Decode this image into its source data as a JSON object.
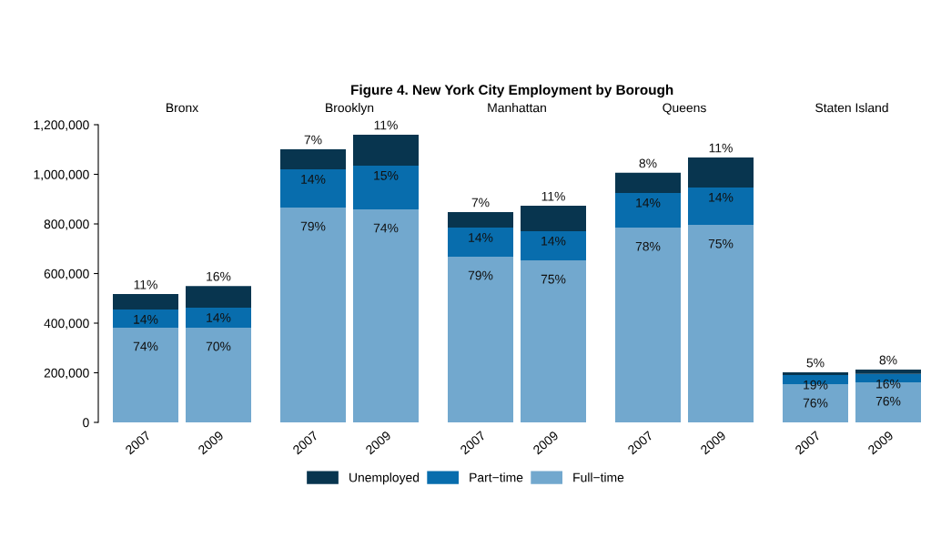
{
  "chart_data": [
    {
      "type": "bar",
      "title": "Bronx",
      "categories": [
        "2007",
        "2009"
      ],
      "stacked": true,
      "legend": "bottom",
      "ylim": [
        0,
        1200000
      ],
      "yticks": [
        {
          "value": 0,
          "label": "0"
        },
        {
          "value": 200000,
          "label": "200,000"
        },
        {
          "value": 400000,
          "label": "400,000"
        },
        {
          "value": 600000,
          "label": "600,000"
        },
        {
          "value": 800000,
          "label": "800,000"
        },
        {
          "value": 1000000,
          "label": "1,000,000"
        },
        {
          "value": 1200000,
          "label": "1,200,000"
        }
      ],
      "series": [
        {
          "name": "Full−time",
          "color": "#72a8ce",
          "values": [
            382000,
            382000
          ]
        },
        {
          "name": "Part−time",
          "color": "#086dad",
          "values": [
            73000,
            80000
          ]
        },
        {
          "name": "Unemployed",
          "color": "#08354f",
          "values": [
            62000,
            88000
          ]
        }
      ],
      "annotations": [
        "Figure 4. New York City Employment by Borough",
        {
          "text": "74%",
          "x": "2007",
          "y": 382000
        },
        {
          "text": "70%",
          "x": "2009",
          "y": 382000
        },
        {
          "text": "14%",
          "x": "2007",
          "y": 455000
        },
        {
          "text": "14%",
          "x": "2009",
          "y": 462000
        },
        {
          "text": "11%",
          "x": "2007",
          "y": 517000
        },
        {
          "text": "16%",
          "x": "2009",
          "y": 550000
        }
      ]
    },
    {
      "type": "bar",
      "title": "Brooklyn",
      "categories": [
        "2007",
        "2009"
      ],
      "stacked": true,
      "tick_labels": "x",
      "ylim": [
        0,
        1200000
      ],
      "series": [
        {
          "color": "#72a8ce",
          "values": [
            866000,
            859000
          ]
        },
        {
          "color": "#086dad",
          "values": [
            154000,
            176000
          ]
        },
        {
          "color": "#08354f",
          "values": [
            81000,
            125000
          ]
        }
      ],
      "annotations": [
        {
          "text": "79%",
          "x": "2007",
          "y": 866000
        },
        {
          "text": "74%",
          "x": "2009",
          "y": 859000
        },
        {
          "text": "14%",
          "x": "2007",
          "y": 1020000
        },
        {
          "text": "15%",
          "x": "2009",
          "y": 1035000
        },
        {
          "text": "7%",
          "x": "2007",
          "y": 1101000
        },
        {
          "text": "11%",
          "x": "2009",
          "y": 1160000
        }
      ]
    },
    {
      "type": "bar",
      "title": "Manhattan",
      "categories": [
        "2007",
        "2009"
      ],
      "stacked": true,
      "tick_labels": "x",
      "ylim": [
        0,
        1200000
      ],
      "series": [
        {
          "color": "#72a8ce",
          "values": [
            668000,
            653000
          ]
        },
        {
          "color": "#086dad",
          "values": [
            117000,
            118000
          ]
        },
        {
          "color": "#08354f",
          "values": [
            63000,
            102000
          ]
        }
      ],
      "annotations": [
        {
          "text": "79%",
          "x": "2007",
          "y": 668000
        },
        {
          "text": "75%",
          "x": "2009",
          "y": 653000
        },
        {
          "text": "14%",
          "x": "2007",
          "y": 785000
        },
        {
          "text": "14%",
          "x": "2009",
          "y": 771000
        },
        {
          "text": "7%",
          "x": "2007",
          "y": 848000
        },
        {
          "text": "11%",
          "x": "2009",
          "y": 873000
        }
      ]
    },
    {
      "type": "bar",
      "title": "Queens",
      "categories": [
        "2007",
        "2009"
      ],
      "stacked": true,
      "tick_labels": "x",
      "ylim": [
        0,
        1200000
      ],
      "series": [
        {
          "color": "#72a8ce",
          "values": [
            785000,
            796000
          ]
        },
        {
          "color": "#086dad",
          "values": [
            140000,
            151000
          ]
        },
        {
          "color": "#08354f",
          "values": [
            81000,
            121000
          ]
        }
      ],
      "annotations": [
        {
          "text": "78%",
          "x": "2007",
          "y": 785000
        },
        {
          "text": "75%",
          "x": "2009",
          "y": 796000
        },
        {
          "text": "14%",
          "x": "2007",
          "y": 925000
        },
        {
          "text": "14%",
          "x": "2009",
          "y": 947000
        },
        {
          "text": "8%",
          "x": "2007",
          "y": 1006000
        },
        {
          "text": "11%",
          "x": "2009",
          "y": 1068000
        }
      ]
    },
    {
      "type": "bar",
      "title": "Staten Island",
      "categories": [
        "2007",
        "2009"
      ],
      "stacked": true,
      "tick_labels": "x",
      "ylim": [
        0,
        1200000
      ],
      "series": [
        {
          "color": "#72a8ce",
          "values": [
            154000,
            161000
          ]
        },
        {
          "color": "#086dad",
          "values": [
            37000,
            34000
          ]
        },
        {
          "color": "#08354f",
          "values": [
            11000,
            18000
          ]
        }
      ],
      "annotations": [
        {
          "text": "76%",
          "x": "2007",
          "y": 154000
        },
        {
          "text": "76%",
          "x": "2009",
          "y": 161000
        },
        {
          "text": "19%",
          "x": "2007",
          "y": 191000
        },
        {
          "text": "16%",
          "x": "2009",
          "y": 195000
        },
        {
          "text": "5%",
          "x": "2007",
          "y": 202000
        },
        {
          "text": "8%",
          "x": "2009",
          "y": 213000
        }
      ]
    }
  ]
}
